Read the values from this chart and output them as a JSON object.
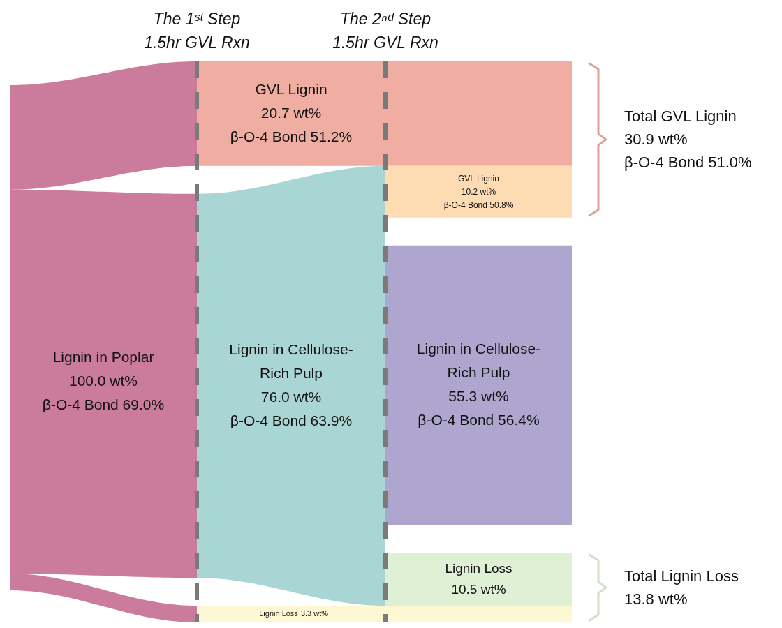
{
  "chart_data": {
    "type": "other",
    "categories": [
      "Lignin in Poplar",
      "GVL Lignin",
      "Lignin in Cellulose-Rich Pulp",
      "Lignin Loss",
      "GVL Lignin",
      "Lignin in Cellulose-Rich Pulp",
      "Lignin Loss"
    ],
    "values": [
      100.0,
      20.7,
      76.0,
      3.3,
      10.2,
      55.3,
      10.5
    ],
    "value_labels": [
      "100.0 wt%\nβ-O-4 Bond 69.0%",
      "20.7 wt%\nβ-O-4 Bond 51.2%",
      "76.0 wt%\nβ-O-4 Bond 63.9%",
      "3.3 wt%",
      "10.2 wt%\nβ-O-4 Bond 50.8%",
      "55.3 wt%\nβ-O-4 Bond 56.4%",
      "10.5 wt%"
    ],
    "colors": [
      "#cb7b9b",
      "#f0ada1",
      "#a9d6d4",
      "#fdf7d3",
      "#fddbb3",
      "#aea6cf",
      "#dff1d5"
    ],
    "annotations": [
      "The 1ˢᵗ Step\n1.5hr GVL Rxn",
      "The 2ⁿᵈ Step\n1.5hr GVL Rxn",
      "Total GVL Lignin\n30.9 wt%\nβ-O-4 Bond 51.0%",
      "Total Lignin Loss\n13.8 wt%"
    ]
  }
}
